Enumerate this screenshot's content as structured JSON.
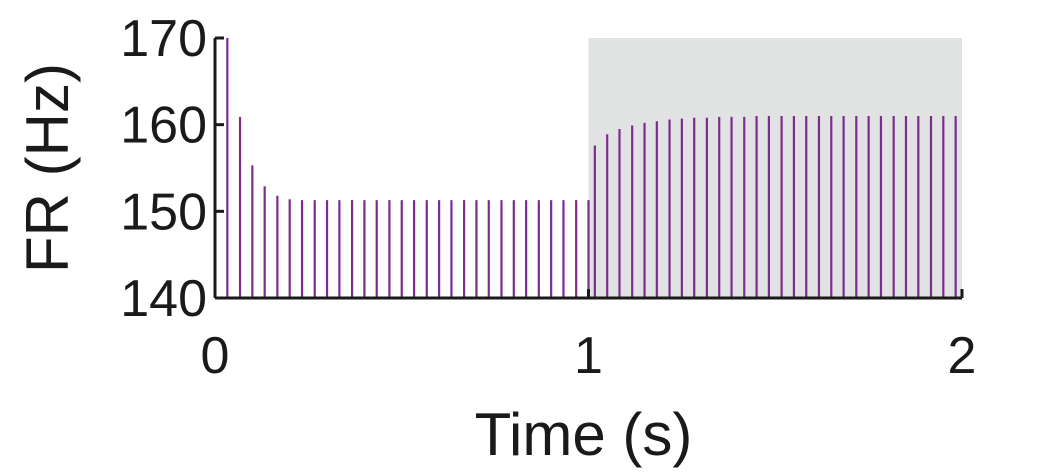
{
  "chart_data": {
    "type": "bar",
    "title": "",
    "xlabel": "Time (s)",
    "ylabel": "FR (Hz)",
    "xlim": [
      0,
      2
    ],
    "ylim": [
      140,
      170
    ],
    "xticks": [
      0,
      1,
      2
    ],
    "yticks": [
      140,
      150,
      160,
      170
    ],
    "grid": false,
    "legend": "none",
    "shaded_region": {
      "x_start": 1,
      "x_end": 2,
      "color": "#e1e2e2"
    },
    "bar_color": "#7b2d8e",
    "series": [
      {
        "x": [
          0.033,
          0.067,
          0.1,
          0.133,
          0.167,
          0.2,
          0.233,
          0.267,
          0.3,
          0.333,
          0.367,
          0.4,
          0.433,
          0.467,
          0.5,
          0.533,
          0.567,
          0.6,
          0.633,
          0.667,
          0.7,
          0.733,
          0.767,
          0.8,
          0.833,
          0.867,
          0.9,
          0.933,
          0.967,
          1.0,
          1.017,
          1.05,
          1.083,
          1.117,
          1.15,
          1.183,
          1.217,
          1.25,
          1.283,
          1.317,
          1.35,
          1.383,
          1.417,
          1.45,
          1.483,
          1.517,
          1.55,
          1.583,
          1.617,
          1.65,
          1.683,
          1.717,
          1.75,
          1.783,
          1.817,
          1.85,
          1.883,
          1.917,
          1.95,
          1.983
        ],
        "values": [
          170.0,
          160.9,
          155.3,
          152.9,
          151.8,
          151.4,
          151.3,
          151.3,
          151.3,
          151.3,
          151.3,
          151.3,
          151.3,
          151.3,
          151.3,
          151.3,
          151.3,
          151.3,
          151.3,
          151.3,
          151.3,
          151.3,
          151.3,
          151.3,
          151.3,
          151.3,
          151.3,
          151.3,
          151.3,
          151.3,
          157.6,
          158.9,
          159.5,
          159.9,
          160.2,
          160.4,
          160.6,
          160.7,
          160.8,
          160.8,
          160.9,
          160.9,
          160.9,
          161.0,
          161.0,
          161.0,
          161.0,
          161.0,
          161.0,
          161.0,
          161.0,
          161.0,
          161.0,
          161.0,
          161.0,
          161.0,
          161.0,
          161.0,
          161.0,
          161.0
        ]
      }
    ]
  }
}
